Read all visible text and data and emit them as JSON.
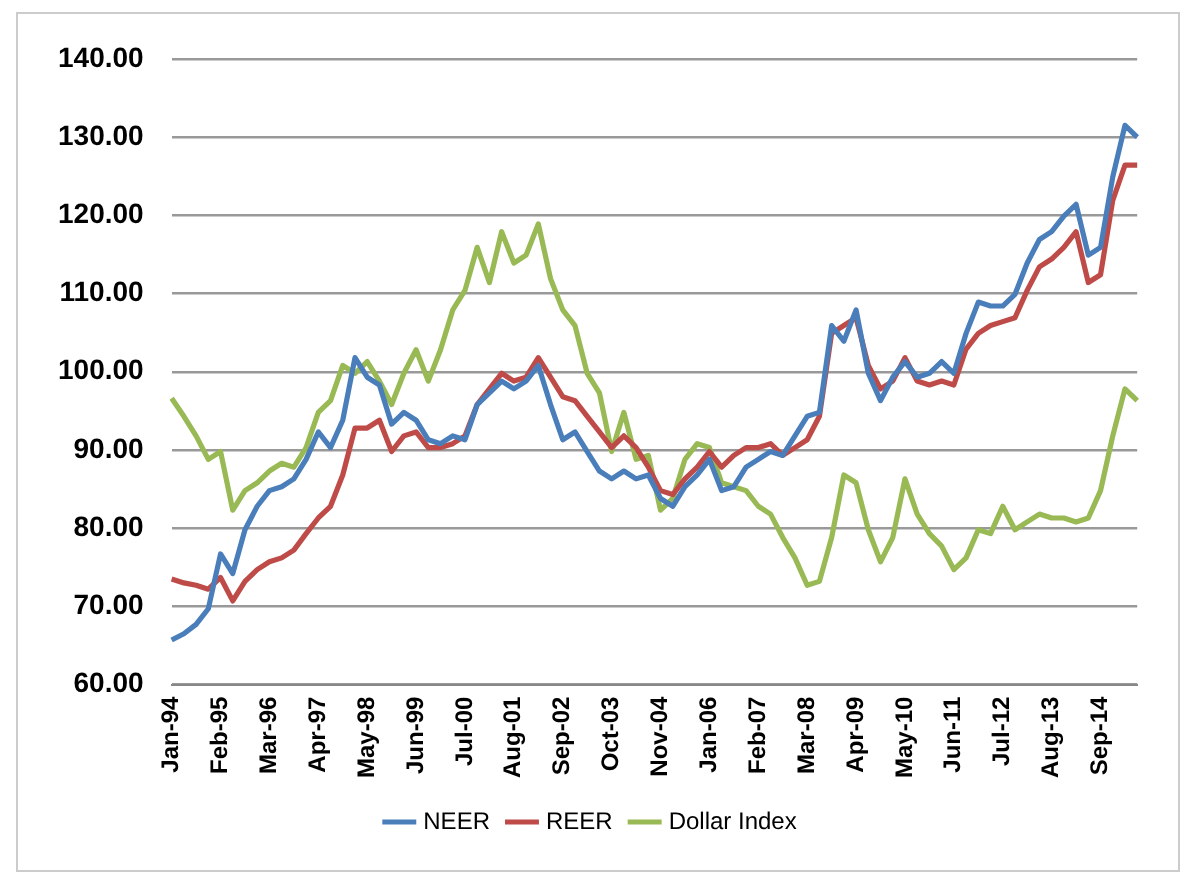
{
  "chart_data": {
    "type": "line",
    "categories": [
      "Jan-94",
      null,
      null,
      null,
      "Feb-95",
      null,
      null,
      null,
      "Mar-96",
      null,
      null,
      null,
      "Apr-97",
      null,
      null,
      null,
      "May-98",
      null,
      null,
      null,
      "Jun-99",
      null,
      null,
      null,
      "Jul-00",
      null,
      null,
      null,
      "Aug-01",
      null,
      null,
      null,
      "Sep-02",
      null,
      null,
      null,
      "Oct-03",
      null,
      null,
      null,
      "Nov-04",
      null,
      null,
      null,
      "Jan-06",
      null,
      null,
      null,
      "Feb-07",
      null,
      null,
      null,
      "Mar-08",
      null,
      null,
      null,
      "Apr-09",
      null,
      null,
      null,
      "May-10",
      null,
      null,
      null,
      "Jun-11",
      null,
      null,
      null,
      "Jul-12",
      null,
      null,
      null,
      "Aug-13",
      null,
      null,
      null,
      "Sep-14",
      null,
      null,
      null
    ],
    "series": [
      {
        "name": "NEER",
        "color": "#4a7ebb",
        "values": [
          65.7,
          66.5,
          67.7,
          69.7,
          76.7,
          74.2,
          79.8,
          82.8,
          84.8,
          85.3,
          86.3,
          88.8,
          92.3,
          90.3,
          93.8,
          101.8,
          99.3,
          98.3,
          93.3,
          94.8,
          93.8,
          91.3,
          90.8,
          91.8,
          91.3,
          95.8,
          97.3,
          98.8,
          97.8,
          98.8,
          100.8,
          95.8,
          91.3,
          92.3,
          89.8,
          87.3,
          86.3,
          87.3,
          86.3,
          86.8,
          83.8,
          82.8,
          85.3,
          86.8,
          88.8,
          84.8,
          85.3,
          87.8,
          88.8,
          89.8,
          89.3,
          91.8,
          94.3,
          94.8,
          105.9,
          103.9,
          107.9,
          99.8,
          96.3,
          99.3,
          101.3,
          99.3,
          99.8,
          101.3,
          99.8,
          104.9,
          108.9,
          108.4,
          108.4,
          109.9,
          113.9,
          116.9,
          117.9,
          119.9,
          121.4,
          114.9,
          115.9,
          124.9,
          131.5,
          130.0
        ]
      },
      {
        "name": "REER",
        "color": "#be4b48",
        "values": [
          73.5,
          73.0,
          72.7,
          72.2,
          73.7,
          70.7,
          73.2,
          74.7,
          75.7,
          76.2,
          77.2,
          79.3,
          81.3,
          82.8,
          86.8,
          92.8,
          92.8,
          93.8,
          89.8,
          91.8,
          92.3,
          90.3,
          90.3,
          90.8,
          91.8,
          95.8,
          97.8,
          99.8,
          98.8,
          99.3,
          101.8,
          99.3,
          96.8,
          96.3,
          94.3,
          92.3,
          90.3,
          91.8,
          90.3,
          87.8,
          84.8,
          84.3,
          86.3,
          87.8,
          89.8,
          87.8,
          89.3,
          90.3,
          90.3,
          90.8,
          89.3,
          90.3,
          91.3,
          94.3,
          104.9,
          105.9,
          106.9,
          100.8,
          97.8,
          98.8,
          101.8,
          98.8,
          98.3,
          98.8,
          98.3,
          102.9,
          104.9,
          105.9,
          106.4,
          106.9,
          110.4,
          113.4,
          114.4,
          115.9,
          117.9,
          111.4,
          112.4,
          121.9,
          126.4,
          126.4
        ]
      },
      {
        "name": "Dollar Index",
        "color": "#98b954",
        "values": [
          96.6,
          94.3,
          91.8,
          88.8,
          89.8,
          82.3,
          84.8,
          85.8,
          87.3,
          88.3,
          87.8,
          90.3,
          94.8,
          96.3,
          100.8,
          99.8,
          101.3,
          98.8,
          95.8,
          99.8,
          102.8,
          98.8,
          102.8,
          107.9,
          110.4,
          115.9,
          111.4,
          117.9,
          113.9,
          114.9,
          118.9,
          111.9,
          107.9,
          105.9,
          99.8,
          97.3,
          89.8,
          94.8,
          88.8,
          89.3,
          82.3,
          83.8,
          88.8,
          90.8,
          90.3,
          85.8,
          85.3,
          84.8,
          82.8,
          81.8,
          78.8,
          76.2,
          72.7,
          73.2,
          78.8,
          86.8,
          85.8,
          79.8,
          75.7,
          78.8,
          86.3,
          81.8,
          79.3,
          77.7,
          74.7,
          76.2,
          79.8,
          79.3,
          82.8,
          79.8,
          80.8,
          81.8,
          81.3,
          81.3,
          80.8,
          81.3,
          84.8,
          91.8,
          97.8,
          96.3
        ]
      }
    ],
    "ylim": [
      60,
      140
    ],
    "yticks": [
      {
        "value": 60,
        "label": "60.00"
      },
      {
        "value": 70,
        "label": "70.00"
      },
      {
        "value": 80,
        "label": "80.00"
      },
      {
        "value": 90,
        "label": "90.00"
      },
      {
        "value": 100,
        "label": "100.00"
      },
      {
        "value": 110,
        "label": "110.00"
      },
      {
        "value": 120,
        "label": "120.00"
      },
      {
        "value": 130,
        "label": "130.00"
      },
      {
        "value": 140,
        "label": "140.00"
      }
    ],
    "grid": "y",
    "legend": "bottom",
    "marker": "none",
    "line_style": "solid"
  }
}
